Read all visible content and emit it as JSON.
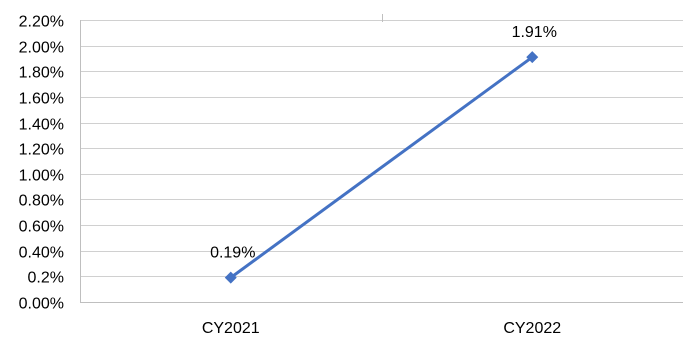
{
  "chart_data": {
    "type": "line",
    "categories": [
      "CY2021",
      "CY2022"
    ],
    "series": [
      {
        "values": [
          0.19,
          1.91
        ],
        "data_labels": [
          "0.19%",
          "1.91%"
        ],
        "color": "#4472C4",
        "marker": "diamond"
      }
    ],
    "ylim": [
      0,
      2.2
    ],
    "y_ticks": [
      0,
      0.2,
      0.4,
      0.6,
      0.8,
      1.0,
      1.2,
      1.4,
      1.6,
      1.8,
      2.0,
      2.2
    ],
    "y_tick_labels": [
      "0.00%",
      "0.2%",
      "0.40%",
      "0.60%",
      "0.80%",
      "1.00%",
      "1.20%",
      "1.40%",
      "1.60%",
      "1.80%",
      "2.00%",
      "2.20%"
    ],
    "grid": true,
    "legend": "none",
    "colors": {
      "gridline": "#d0d0d0",
      "axis": "#bfbfbf",
      "text": "#000000"
    }
  }
}
